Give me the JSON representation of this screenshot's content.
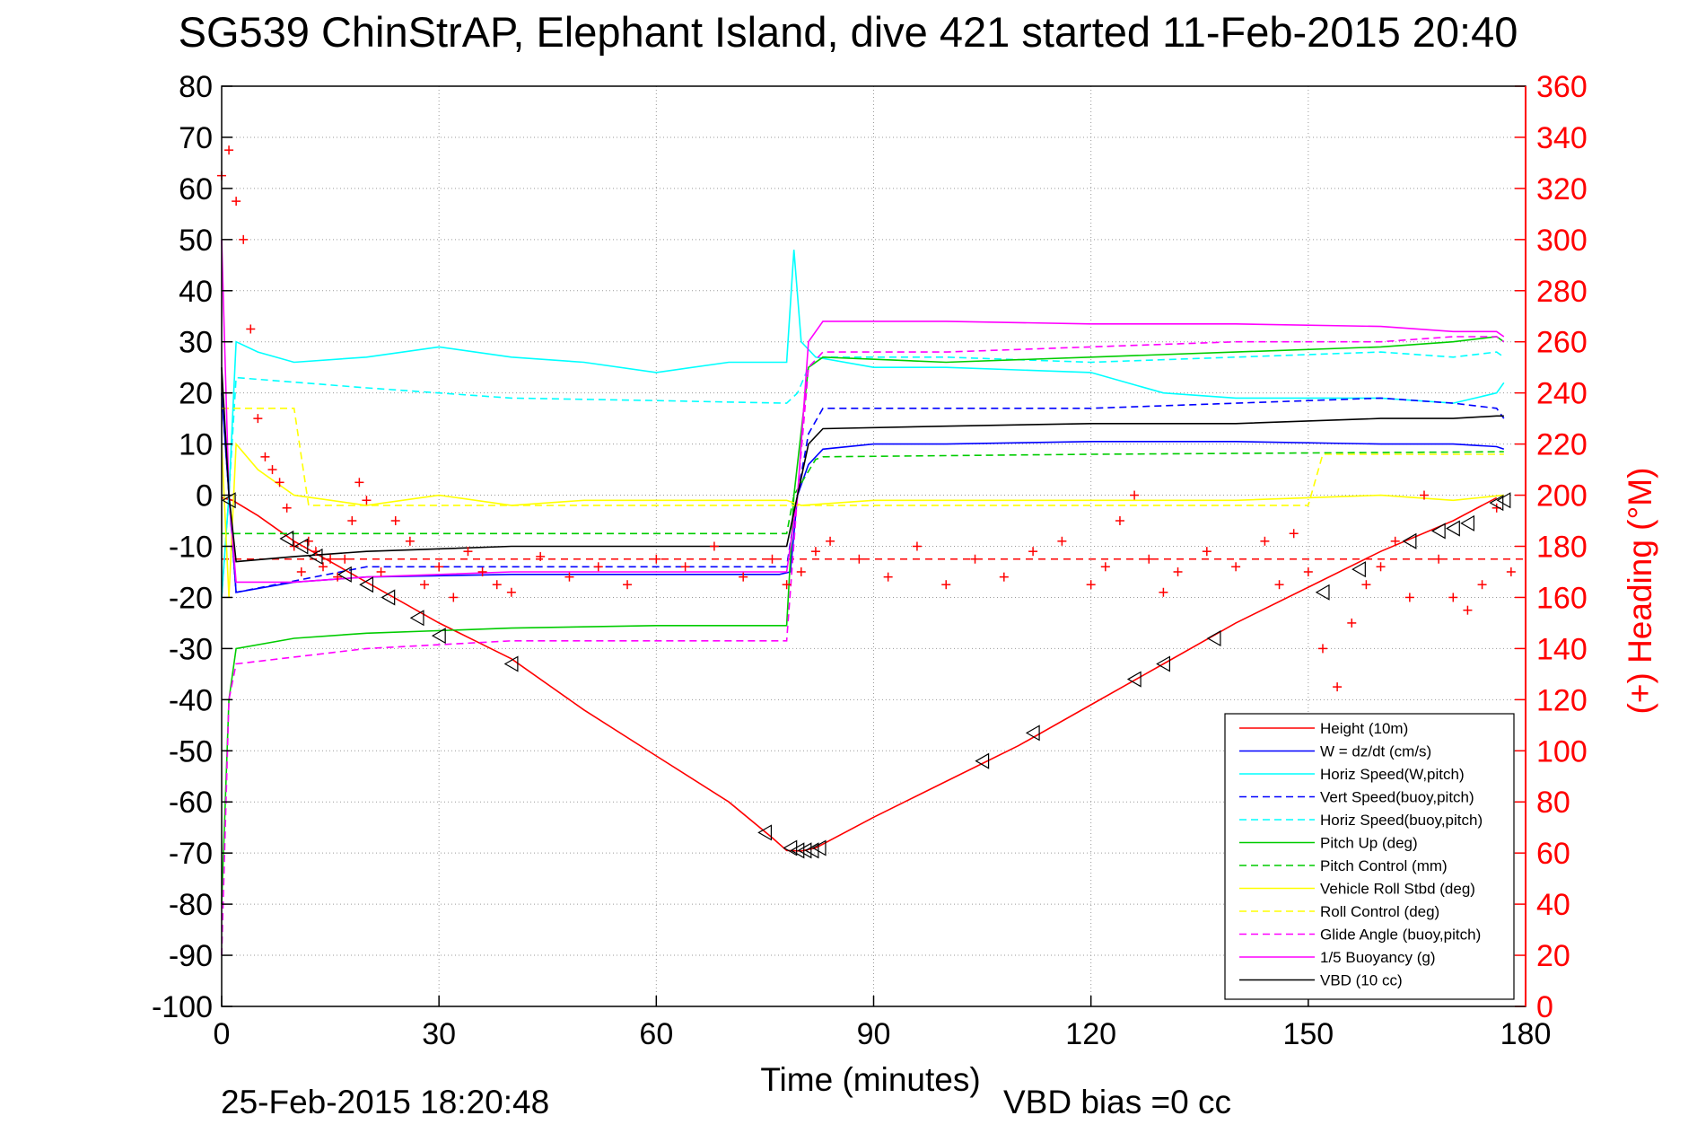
{
  "chart_data": {
    "type": "line",
    "title": "SG539 ChinStrAP, Elephant Island, dive 421 started 11-Feb-2015 20:40",
    "xlabel": "Time (minutes)",
    "ylabel_right": "(+) Heading (°M)",
    "xlim": [
      0,
      180
    ],
    "ylim": [
      -100,
      80
    ],
    "ylim_right": [
      0,
      360
    ],
    "x_ticks": [
      "0",
      "30",
      "60",
      "90",
      "120",
      "150",
      "180"
    ],
    "y_ticks": [
      "80",
      "70",
      "60",
      "50",
      "40",
      "30",
      "20",
      "10",
      "0",
      "-10",
      "-20",
      "-30",
      "-40",
      "-50",
      "-60",
      "-70",
      "-80",
      "-90",
      "-100"
    ],
    "y_ticks_right": [
      "360",
      "340",
      "320",
      "300",
      "280",
      "260",
      "240",
      "220",
      "200",
      "180",
      "160",
      "140",
      "120",
      "100",
      "80",
      "60",
      "40",
      "20",
      "0"
    ],
    "grid": true,
    "legend_position": "bottom-right",
    "series": [
      {
        "name": "Height (10m)",
        "color": "#ff0000",
        "dash": "solid",
        "x": [
          0,
          1.5,
          5,
          10,
          15,
          20,
          25,
          30,
          35,
          40,
          50,
          60,
          70,
          76,
          78,
          80,
          82,
          90,
          100,
          110,
          120,
          130,
          140,
          150,
          160,
          170,
          176
        ],
        "y": [
          -0.5,
          -1,
          -4,
          -9,
          -13,
          -17,
          -21,
          -25,
          -28.5,
          -32,
          -42,
          -51,
          -60,
          -67,
          -69.5,
          -69.6,
          -69,
          -63,
          -56,
          -49,
          -41,
          -33,
          -25,
          -18,
          -11,
          -5,
          -0.5
        ]
      },
      {
        "name": "W = dz/dt (cm/s)",
        "color": "#0000ff",
        "dash": "solid",
        "x": [
          0,
          1,
          2,
          10,
          20,
          40,
          60,
          77,
          78.5,
          79.5,
          81,
          83,
          90,
          100,
          120,
          140,
          160,
          170,
          176,
          177
        ],
        "y": [
          20,
          0,
          -19,
          -17,
          -16,
          -15.5,
          -15.5,
          -15.5,
          -15,
          0,
          6,
          9,
          10,
          10,
          10.5,
          10.5,
          10,
          10,
          9.5,
          9
        ]
      },
      {
        "name": "Horiz Speed(W,pitch)",
        "color": "#00ffff",
        "dash": "solid",
        "x": [
          0,
          1,
          2,
          5,
          10,
          20,
          30,
          40,
          50,
          60,
          70,
          78,
          79,
          80,
          82,
          90,
          100,
          120,
          130,
          140,
          150,
          160,
          170,
          176,
          177
        ],
        "y": [
          -20,
          0,
          30,
          28,
          26,
          27,
          29,
          27,
          26,
          24,
          26,
          26,
          48,
          30,
          27,
          25,
          25,
          24,
          20,
          19,
          19,
          19,
          18,
          20,
          22
        ]
      },
      {
        "name": "Vert Speed(buoy,pitch)",
        "color": "#0000ff",
        "dash": "dashed",
        "x": [
          0,
          1,
          2,
          20,
          40,
          60,
          78,
          79.5,
          81,
          83,
          100,
          120,
          140,
          160,
          170,
          176,
          177
        ],
        "y": [
          20,
          0,
          -19,
          -14,
          -14,
          -14,
          -14,
          0,
          12,
          17,
          17,
          17,
          18,
          19,
          18,
          17,
          15
        ]
      },
      {
        "name": "Horiz Speed(buoy,pitch)",
        "color": "#00ffff",
        "dash": "dashed",
        "x": [
          0,
          1,
          2,
          20,
          40,
          60,
          78,
          79.5,
          81,
          83,
          100,
          120,
          140,
          160,
          170,
          176,
          177
        ],
        "y": [
          -20,
          0,
          23,
          21,
          19,
          18.5,
          18,
          20,
          25,
          27,
          27,
          26,
          27,
          28,
          27,
          28,
          27
        ]
      },
      {
        "name": "Pitch Up (deg)",
        "color": "#00cc00",
        "dash": "solid",
        "x": [
          0,
          1,
          2,
          10,
          20,
          40,
          60,
          78,
          79,
          81,
          83,
          100,
          120,
          140,
          160,
          170,
          176,
          177
        ],
        "y": [
          -80,
          -40,
          -30,
          -28,
          -27,
          -26,
          -25.5,
          -25.5,
          0,
          25,
          27,
          26,
          27,
          28,
          29,
          30,
          31,
          30
        ]
      },
      {
        "name": "Pitch Control (mm)",
        "color": "#00cc00",
        "dash": "dashed",
        "x": [
          0,
          2,
          40,
          78,
          79,
          82,
          83,
          120,
          177
        ],
        "y": [
          -7.5,
          -7.5,
          -7.5,
          -7.5,
          0,
          7,
          7.5,
          8,
          8.5
        ]
      },
      {
        "name": "Vehicle Roll Stbd (deg)",
        "color": "#ffff00",
        "dash": "solid",
        "x": [
          0,
          1,
          2,
          5,
          10,
          20,
          30,
          40,
          50,
          60,
          70,
          78,
          80,
          90,
          100,
          120,
          140,
          160,
          170,
          177
        ],
        "y": [
          10,
          -20,
          10,
          5,
          0,
          -2,
          0,
          -2,
          -1,
          -1,
          -1,
          -1,
          -2,
          -1,
          -1,
          -1,
          -1,
          0,
          -1,
          0
        ]
      },
      {
        "name": "Roll Control (deg)",
        "color": "#ffff00",
        "dash": "dashed",
        "x": [
          0,
          2,
          10,
          12,
          20,
          30,
          40,
          60,
          80,
          100,
          120,
          140,
          150,
          152,
          170,
          177
        ],
        "y": [
          17,
          17,
          17,
          -2,
          -2,
          -2,
          -2,
          -2,
          -2,
          -2,
          -2,
          -2,
          -2,
          8,
          8,
          8
        ]
      },
      {
        "name": "Glide Angle (buoy,pitch)",
        "color": "#ff00ff",
        "dash": "dashed",
        "x": [
          0,
          1,
          2,
          20,
          40,
          60,
          78,
          79.5,
          81,
          83,
          100,
          120,
          140,
          160,
          170,
          176,
          177
        ],
        "y": [
          -90,
          -40,
          -33,
          -30,
          -28.5,
          -28.5,
          -28.5,
          0,
          25,
          28,
          28,
          29,
          30,
          30,
          31,
          31,
          30
        ]
      },
      {
        "name": "1/5 Buoyancy (g)",
        "color": "#ff00ff",
        "dash": "solid",
        "x": [
          0,
          1,
          2,
          10,
          20,
          40,
          60,
          78,
          79.5,
          81,
          83,
          100,
          120,
          140,
          160,
          170,
          176,
          177
        ],
        "y": [
          50,
          0,
          -17,
          -17,
          -16,
          -15,
          -15,
          -15,
          0,
          30,
          34,
          34,
          33.5,
          33.5,
          33,
          32,
          32,
          31
        ]
      },
      {
        "name": "VBD (10 cc)",
        "color": "#000000",
        "dash": "solid",
        "x": [
          0,
          1,
          2,
          10,
          20,
          40,
          60,
          78,
          79.5,
          81,
          83,
          100,
          120,
          140,
          160,
          170,
          176,
          177
        ],
        "y": [
          25,
          0,
          -13,
          -12,
          -11,
          -10,
          -10,
          -10,
          0,
          10,
          13,
          13.5,
          14,
          14,
          15,
          15,
          15.5,
          15.5
        ]
      }
    ],
    "heading_series": {
      "name": "Heading (°M)",
      "color": "#ff0000",
      "marker": "+",
      "axis": "right",
      "x": [
        0,
        1,
        2,
        3,
        4,
        5,
        6,
        7,
        8,
        9,
        10,
        11,
        12,
        13,
        14,
        15,
        16,
        17,
        18,
        19,
        20,
        22,
        24,
        26,
        28,
        30,
        32,
        34,
        36,
        38,
        40,
        44,
        48,
        52,
        56,
        60,
        64,
        68,
        72,
        76,
        78,
        80,
        82,
        84,
        88,
        92,
        96,
        100,
        104,
        108,
        112,
        116,
        120,
        122,
        124,
        126,
        128,
        130,
        132,
        136,
        140,
        144,
        146,
        148,
        150,
        152,
        154,
        156,
        158,
        160,
        162,
        164,
        166,
        168,
        170,
        172,
        174,
        176,
        178
      ],
      "y": [
        325,
        335,
        315,
        300,
        265,
        230,
        215,
        210,
        205,
        195,
        180,
        170,
        182,
        178,
        172,
        175,
        168,
        175,
        190,
        205,
        198,
        170,
        190,
        182,
        165,
        172,
        160,
        178,
        170,
        165,
        162,
        176,
        168,
        172,
        165,
        175,
        172,
        180,
        168,
        175,
        165,
        170,
        178,
        182,
        175,
        168,
        180,
        165,
        175,
        168,
        178,
        182,
        165,
        172,
        190,
        200,
        175,
        162,
        170,
        178,
        172,
        182,
        165,
        185,
        170,
        140,
        125,
        150,
        165,
        172,
        182,
        160,
        200,
        175,
        160,
        155,
        165,
        195,
        170
      ]
    },
    "depth_markers": {
      "name": "depth observations",
      "color": "#000000",
      "marker": "triangle",
      "x": [
        1,
        9,
        11,
        13,
        17,
        20,
        23,
        27,
        30,
        40,
        75,
        78.5,
        79.5,
        80.5,
        81.5,
        82.5,
        105,
        112,
        126,
        130,
        137,
        152,
        157,
        164,
        168,
        170,
        172,
        176,
        177
      ],
      "y": [
        -1,
        -8.5,
        -10,
        -12,
        -15.5,
        -17.5,
        -20,
        -24,
        -27.5,
        -33,
        -66,
        -69,
        -69.5,
        -69.5,
        -69.5,
        -69,
        -52,
        -46.5,
        -36,
        -33,
        -28,
        -19,
        -14.5,
        -9,
        -7,
        -6.5,
        -5.5,
        -1.5,
        -1
      ]
    },
    "heading_mean": {
      "label": "",
      "value_deg": 175,
      "color": "#ff0000",
      "dash": "dashed"
    },
    "annotations": {
      "date_stamp": "25-Feb-2015 18:20:48",
      "vbd_bias": "VBD bias =0 cc"
    }
  }
}
